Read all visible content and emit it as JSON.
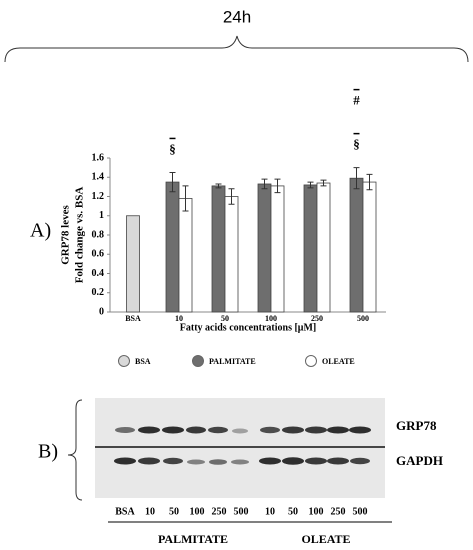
{
  "header": {
    "title": "24h"
  },
  "panel_a": {
    "label": "A)"
  },
  "chart_data": {
    "type": "bar",
    "ylabel": [
      "GRP78 leves",
      "Fold change vs. BSA"
    ],
    "xlabel": "Fatty acids concentrations [μM]",
    "categories": [
      "BSA",
      "10",
      "50",
      "100",
      "250",
      "500"
    ],
    "ylim": [
      0,
      1.6
    ],
    "yticks": [
      0,
      0.2,
      0.4,
      0.6,
      0.8,
      1,
      1.2,
      1.4,
      1.6
    ],
    "series": [
      {
        "name": "BSA",
        "color": "#d9d9d9",
        "values": [
          1,
          null,
          null,
          null,
          null,
          null
        ],
        "errors": [
          null,
          null,
          null,
          null,
          null,
          null
        ]
      },
      {
        "name": "PALMITATE",
        "color": "#6e6e6e",
        "values": [
          null,
          1.35,
          1.31,
          1.33,
          1.32,
          1.39
        ],
        "errors": [
          null,
          0.1,
          0.02,
          0.05,
          0.03,
          0.11
        ]
      },
      {
        "name": "OLEATE",
        "color": "#ffffff",
        "values": [
          null,
          1.18,
          1.2,
          1.31,
          1.34,
          1.35
        ],
        "errors": [
          null,
          0.13,
          0.08,
          0.07,
          0.03,
          0.08
        ]
      }
    ],
    "annotations": [
      {
        "text": "§",
        "category": "10",
        "series": "PALMITATE"
      },
      {
        "text": "§",
        "category": "500",
        "series": "PALMITATE"
      },
      {
        "text": "#",
        "category": "500",
        "series": "PALMITATE"
      }
    ]
  },
  "panel_b": {
    "label": "B)",
    "bands": [
      "GRP78",
      "GAPDH"
    ],
    "lanes": [
      "BSA",
      "10",
      "50",
      "100",
      "250",
      "500",
      "10",
      "50",
      "100",
      "250",
      "500"
    ],
    "groups": [
      "PALMITATE",
      "OLEATE"
    ]
  }
}
